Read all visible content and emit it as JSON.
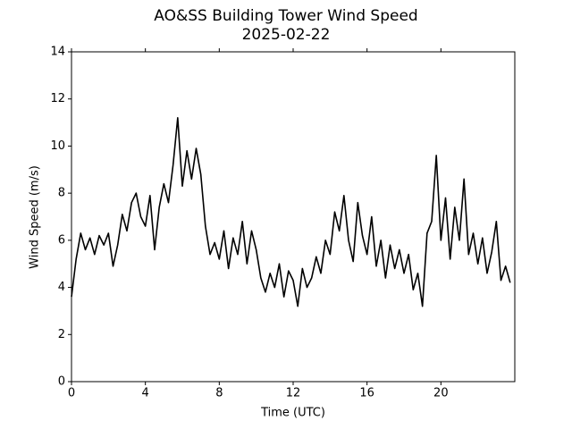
{
  "chart_data": {
    "type": "line",
    "title": "AO&SS Building Tower Wind Speed",
    "subtitle": "2025-02-22",
    "x_label": "Time (UTC)",
    "y_label": "Wind Speed (m/s)",
    "xlim": [
      0,
      24
    ],
    "xticks": [
      0,
      4,
      8,
      12,
      16,
      20
    ],
    "ylim": [
      0,
      14
    ],
    "yticks": [
      0,
      2,
      4,
      6,
      8,
      10,
      12,
      14
    ],
    "color": "#000000",
    "x": [
      0,
      0.25,
      0.5,
      0.75,
      1,
      1.25,
      1.5,
      1.75,
      2,
      2.25,
      2.5,
      2.75,
      3,
      3.25,
      3.5,
      3.75,
      4,
      4.25,
      4.5,
      4.75,
      5,
      5.25,
      5.5,
      5.75,
      6,
      6.25,
      6.5,
      6.75,
      7,
      7.25,
      7.5,
      7.75,
      8,
      8.25,
      8.5,
      8.75,
      9,
      9.25,
      9.5,
      9.75,
      10,
      10.25,
      10.5,
      10.75,
      11,
      11.25,
      11.5,
      11.75,
      12,
      12.25,
      12.5,
      12.75,
      13,
      13.25,
      13.5,
      13.75,
      14,
      14.25,
      14.5,
      14.75,
      15,
      15.25,
      15.5,
      15.75,
      16,
      16.25,
      16.5,
      16.75,
      17,
      17.25,
      17.5,
      17.75,
      18,
      18.25,
      18.5,
      18.75,
      19,
      19.25,
      19.5,
      19.75,
      20,
      20.25,
      20.5,
      20.75,
      21,
      21.25,
      21.5,
      21.75,
      22,
      22.25,
      22.5,
      22.75,
      23,
      23.25,
      23.5,
      23.75
    ],
    "values": [
      3.6,
      5.2,
      6.3,
      5.6,
      6.1,
      5.4,
      6.2,
      5.8,
      6.3,
      4.9,
      5.8,
      7.1,
      6.4,
      7.6,
      8.0,
      7.0,
      6.6,
      7.9,
      5.6,
      7.4,
      8.4,
      7.6,
      9.2,
      11.2,
      8.3,
      9.8,
      8.6,
      9.9,
      8.8,
      6.6,
      5.4,
      5.9,
      5.2,
      6.4,
      4.8,
      6.1,
      5.4,
      6.8,
      5.0,
      6.4,
      5.6,
      4.4,
      3.8,
      4.6,
      4.0,
      5.0,
      3.6,
      4.7,
      4.3,
      3.2,
      4.8,
      4.0,
      4.4,
      5.3,
      4.6,
      6.0,
      5.4,
      7.2,
      6.4,
      7.9,
      6.0,
      5.1,
      7.6,
      6.2,
      5.4,
      7.0,
      4.9,
      6.0,
      4.4,
      5.8,
      4.8,
      5.6,
      4.6,
      5.4,
      3.9,
      4.6,
      3.2,
      6.3,
      6.8,
      9.6,
      6.0,
      7.8,
      5.2,
      7.4,
      6.0,
      8.6,
      5.4,
      6.3,
      5.0,
      6.1,
      4.6,
      5.5,
      6.8,
      4.3,
      4.9,
      4.2
    ]
  }
}
